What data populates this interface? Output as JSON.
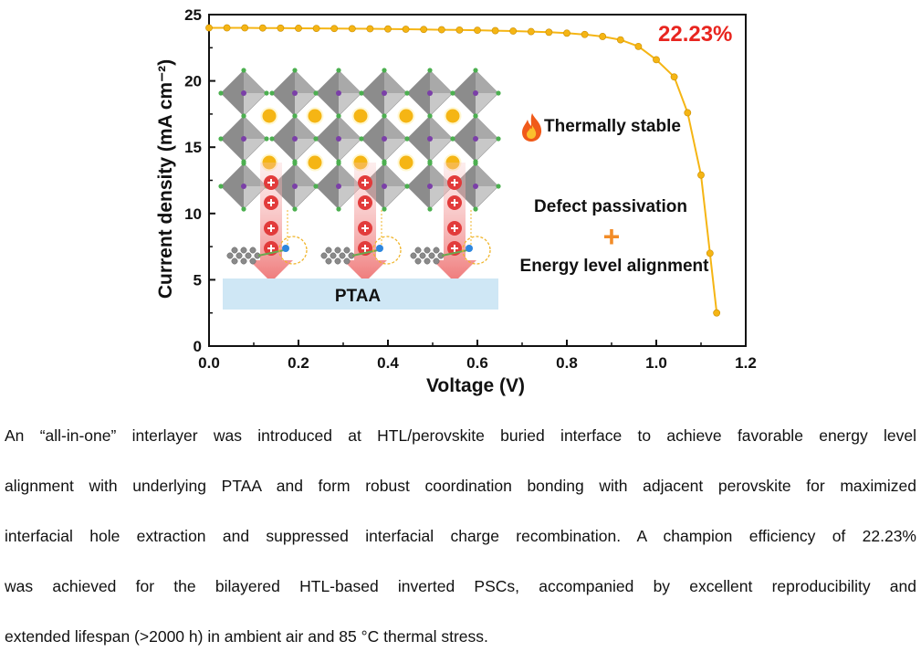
{
  "chart_data": {
    "type": "line",
    "xlabel": "Voltage (V)",
    "ylabel": "Current density (mA cm⁻²)",
    "xlim": [
      0,
      1.2
    ],
    "ylim": [
      0,
      25
    ],
    "xticks": [
      "0.0",
      "0.2",
      "0.4",
      "0.6",
      "0.8",
      "1.0",
      "1.2"
    ],
    "yticks": [
      "0",
      "5",
      "10",
      "15",
      "20",
      "25"
    ],
    "grid": false,
    "series": [
      {
        "color": "#f5b514",
        "x": [
          0.0,
          0.04,
          0.08,
          0.12,
          0.16,
          0.2,
          0.24,
          0.28,
          0.32,
          0.36,
          0.4,
          0.44,
          0.48,
          0.52,
          0.56,
          0.6,
          0.64,
          0.68,
          0.72,
          0.76,
          0.8,
          0.84,
          0.88,
          0.92,
          0.96,
          1.0,
          1.04,
          1.07,
          1.1,
          1.12,
          1.135
        ],
        "y": [
          24.0,
          24.0,
          24.0,
          23.99,
          23.98,
          23.97,
          23.96,
          23.95,
          23.94,
          23.93,
          23.92,
          23.9,
          23.88,
          23.86,
          23.84,
          23.82,
          23.79,
          23.76,
          23.72,
          23.67,
          23.6,
          23.5,
          23.35,
          23.1,
          22.6,
          21.6,
          20.3,
          17.6,
          12.9,
          7.0,
          2.5
        ]
      }
    ],
    "annotations": {
      "efficiency": "22.23%",
      "stability": "Thermally stable",
      "defect": "Defect passivation",
      "plus": "+",
      "energy": "Energy level alignment",
      "layer": "PTAA"
    }
  },
  "caption": {
    "lines": [
      "An “all-in-one” interlayer was introduced at HTL/perovskite buried interface to achieve favorable energy level",
      "alignment with underlying PTAA and form robust coordination bonding with adjacent perovskite for maximized",
      "interfacial hole extraction and suppressed interfacial charge recombination. A champion efficiency of 22.23%",
      "was achieved for the bilayered HTL-based inverted PSCs, accompanied by excellent reproducibility and",
      "extended lifespan (>2000 h) in ambient air and 85 °C thermal stress."
    ]
  },
  "colors": {
    "curve": "#f5b514",
    "efficiency_text": "#e8251f",
    "octahedron_dark": "#8c8c8c",
    "octahedron_light": "#c8c8c8",
    "a_site": "#f5b514",
    "halide": "#4caf50",
    "b_site": "#7b3fa8",
    "hole": "#e23b3b",
    "arrow": "#f08a8a",
    "ptaa": "#cfe7f5",
    "plus": "#f28c28",
    "flame": "#f05a1a"
  }
}
